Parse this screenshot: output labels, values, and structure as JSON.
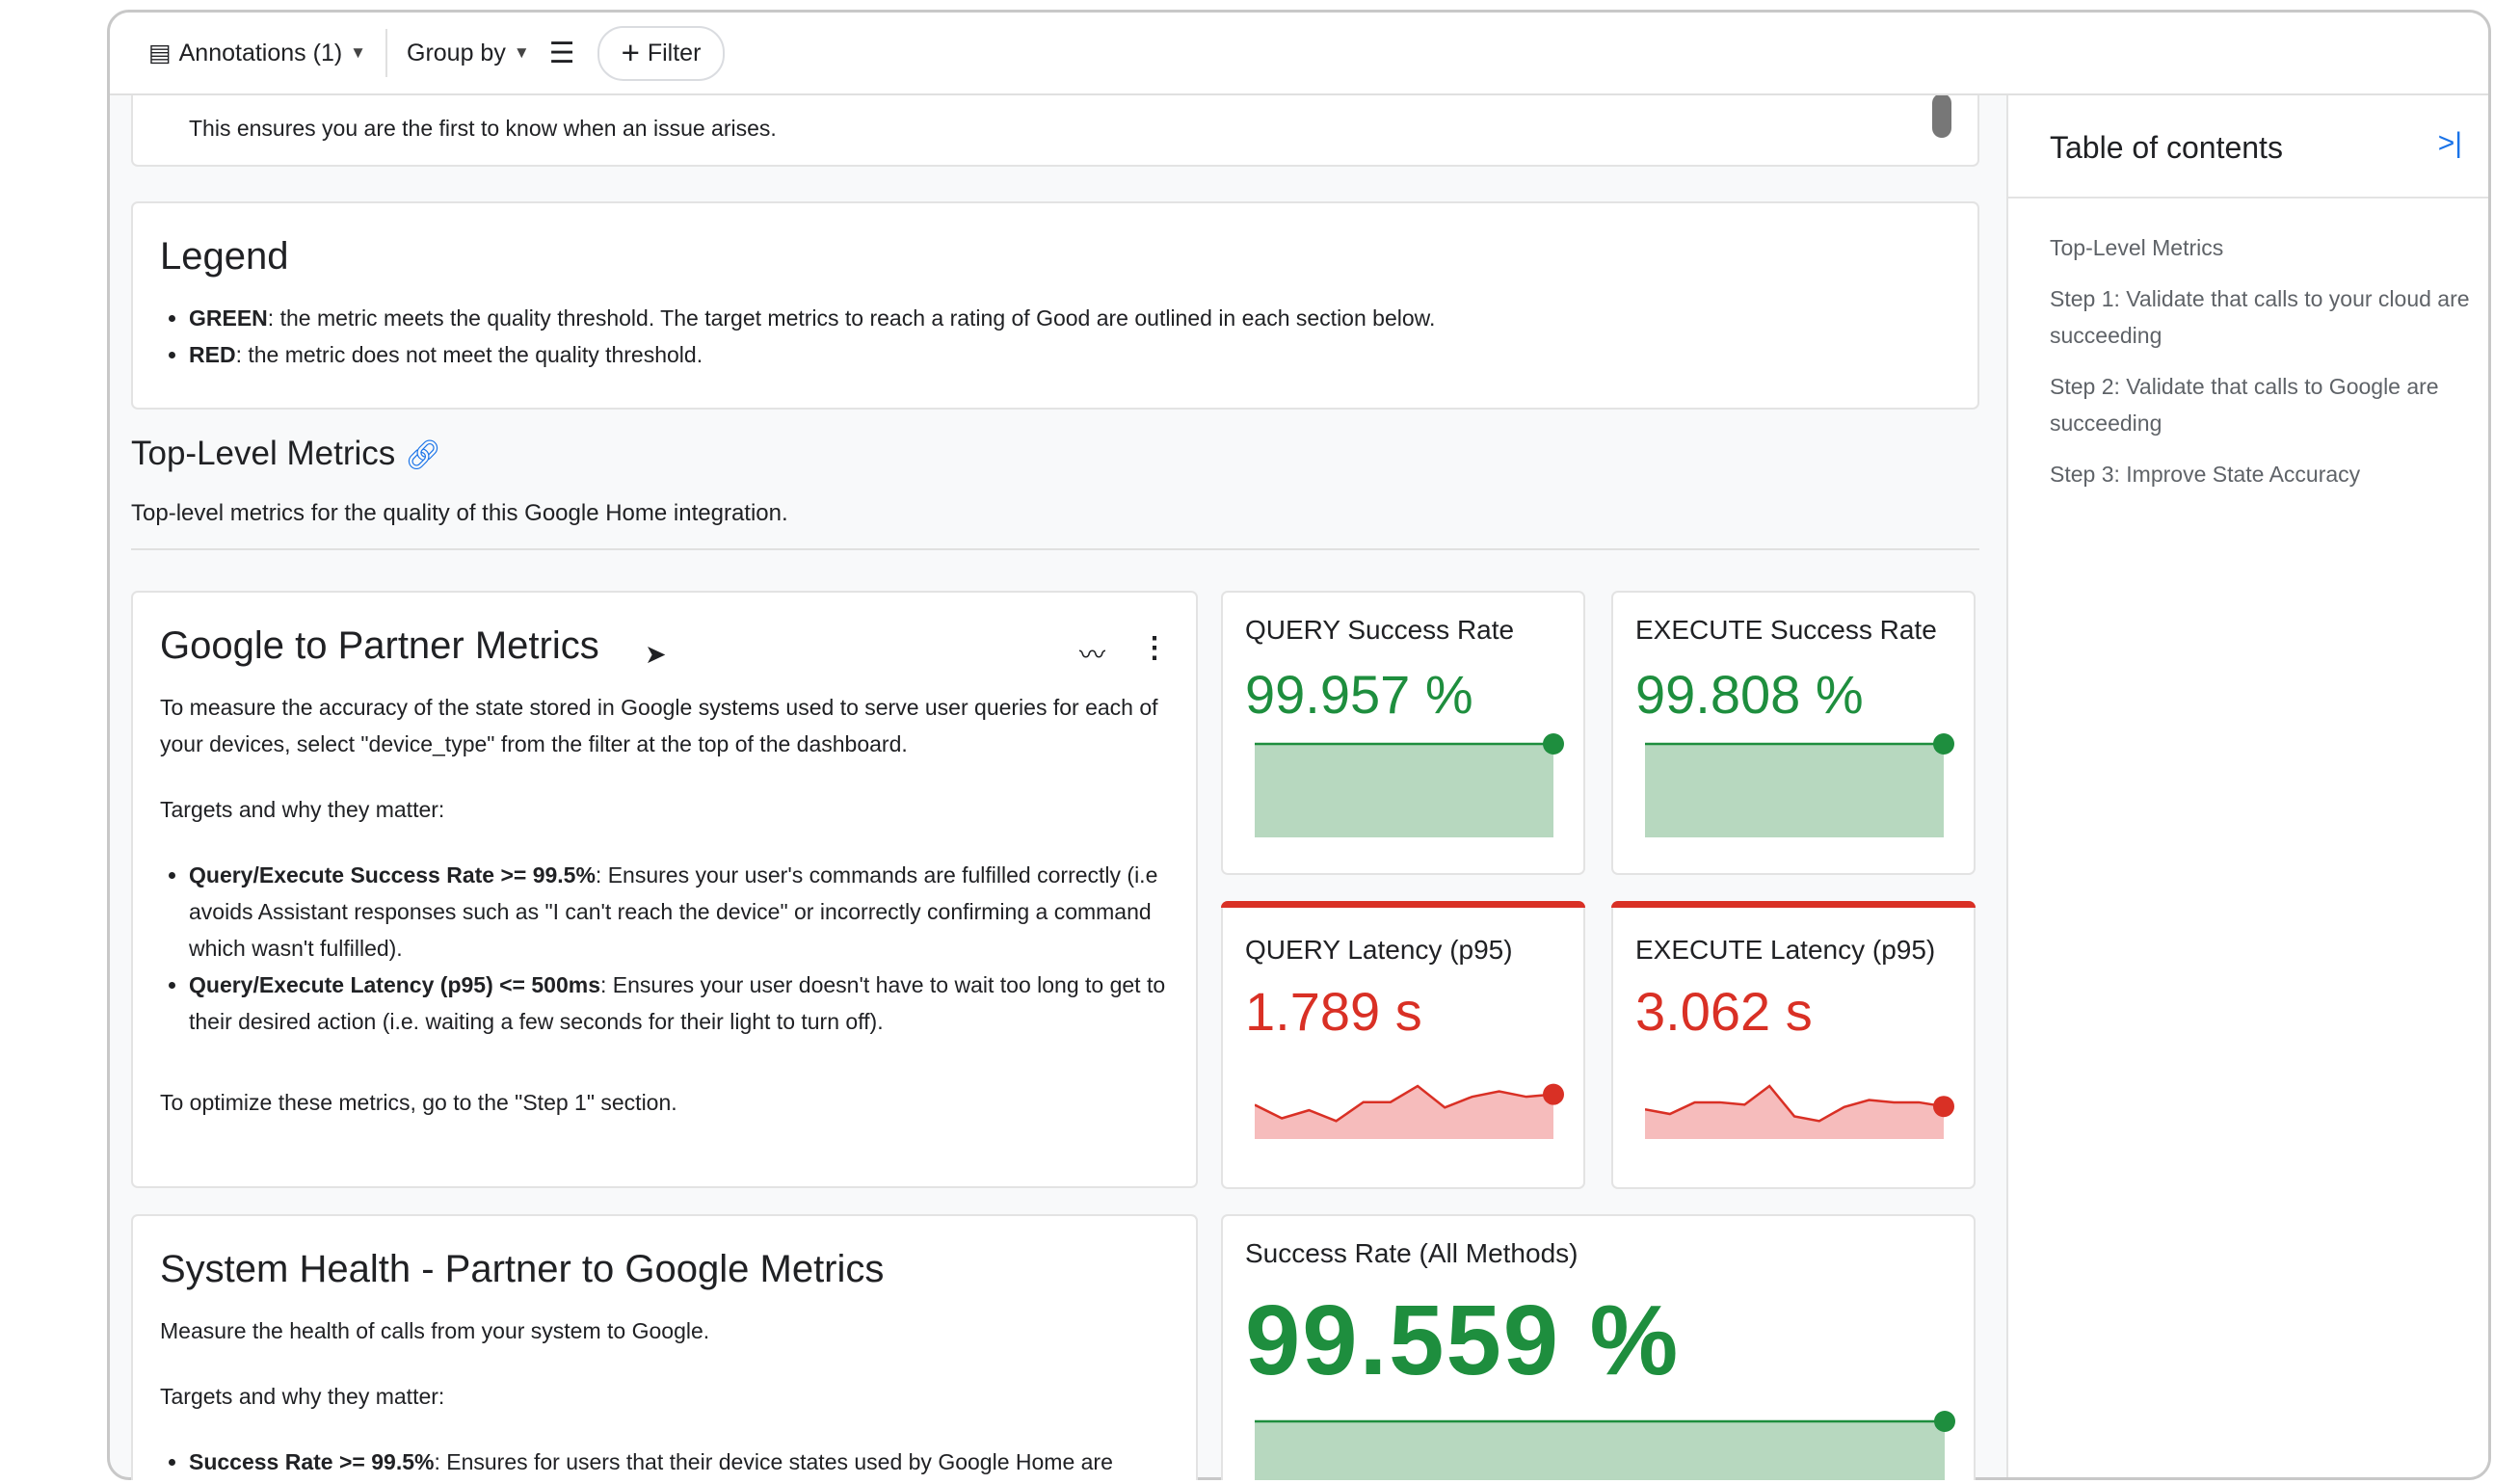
{
  "toolbar": {
    "annotations": "Annotations (1)",
    "group_by": "Group by",
    "filter": "Filter"
  },
  "intro": {
    "text": "This ensures you are the first to know when an issue arises."
  },
  "legend": {
    "title": "Legend",
    "items": [
      {
        "key": "GREEN",
        "text": ": the metric meets the quality threshold. The target metrics to reach a rating of Good are outlined in each section below."
      },
      {
        "key": "RED",
        "text": ": the metric does not meet the quality threshold."
      }
    ]
  },
  "top_level": {
    "title": "Top-Level Metrics",
    "description": "Top-level metrics for the quality of this Google Home integration."
  },
  "g2p": {
    "title": "Google to Partner Metrics",
    "p1": "To measure the accuracy of the state stored in Google systems used to serve user queries for each of your devices, select \"device_type\" from the filter at the top of the dashboard.",
    "targets": "Targets and why they matter:",
    "bullets": [
      {
        "key": "Query/Execute Success Rate >= 99.5%",
        "text": ": Ensures your user's commands are fulfilled correctly (i.e avoids Assistant responses such as \"I can't reach the device\" or incorrectly confirming a command which wasn't fulfilled)."
      },
      {
        "key": "Query/Execute Latency (p95) <= 500ms",
        "text": ": Ensures your user doesn't have to wait too long to get to their desired action (i.e. waiting a few seconds for their light to turn off)."
      }
    ],
    "footer": "To optimize these metrics, go to the \"Step 1\" section."
  },
  "metrics": [
    {
      "title": "QUERY Success Rate",
      "value": "99.957 %",
      "status": "green",
      "trend": [
        99.95,
        99.95,
        99.95,
        99.95,
        99.95,
        99.95,
        99.95,
        99.95,
        99.95,
        99.95,
        99.95,
        99.957
      ]
    },
    {
      "title": "EXECUTE Success Rate",
      "value": "99.808 %",
      "status": "green",
      "trend": [
        99.8,
        99.8,
        99.8,
        99.8,
        99.8,
        99.8,
        99.8,
        99.8,
        99.8,
        99.8,
        99.8,
        99.808
      ]
    },
    {
      "title": "QUERY Latency (p95)",
      "value": "1.789 s",
      "status": "red",
      "trend": [
        1.75,
        1.7,
        1.73,
        1.69,
        1.76,
        1.76,
        1.82,
        1.74,
        1.78,
        1.8,
        1.78,
        1.789
      ]
    },
    {
      "title": "EXECUTE Latency (p95)",
      "value": "3.062 s",
      "status": "red",
      "trend": [
        3.0,
        2.9,
        3.15,
        3.15,
        3.1,
        3.5,
        2.85,
        2.75,
        3.05,
        3.2,
        3.15,
        3.15,
        3.062
      ]
    },
    {
      "title": "Success Rate (All Methods)",
      "value": "99.559 %",
      "status": "green",
      "trend": [
        99.55,
        99.56,
        99.56,
        99.56,
        99.55,
        99.54,
        99.55,
        99.56,
        99.55,
        99.559
      ]
    }
  ],
  "p2g": {
    "title": "System Health - Partner to Google Metrics",
    "p1": "Measure the health of calls from your system to Google.",
    "targets": "Targets and why they matter:",
    "bullet_key": "Success Rate >= 99.5%",
    "bullet_text": ": Ensures for users that their device states used by Google Home are"
  },
  "toc": {
    "title": "Table of contents",
    "items": [
      "Top-Level Metrics",
      "Step 1: Validate that calls to your cloud are succeeding",
      "Step 2: Validate that calls to Google are succeeding",
      "Step 3: Improve State Accuracy"
    ]
  },
  "colors": {
    "green": "#1e8e3e",
    "red": "#d93025",
    "green_fill": "#b7d8bf",
    "red_fill": "#f6bcbc",
    "link": "#1a73e8"
  }
}
